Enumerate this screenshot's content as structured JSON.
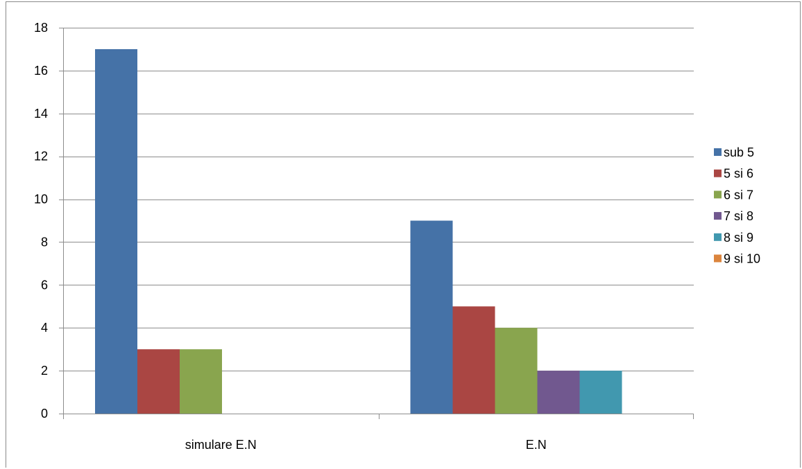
{
  "chart_data": {
    "type": "bar",
    "categories": [
      "simulare E.N",
      "E.N"
    ],
    "series": [
      {
        "name": "sub 5",
        "color": "#4572A7",
        "values": [
          17,
          9
        ]
      },
      {
        "name": "5 si 6",
        "color": "#AA4643",
        "values": [
          3,
          5
        ]
      },
      {
        "name": "6 si 7",
        "color": "#89A54E",
        "values": [
          3,
          4
        ]
      },
      {
        "name": "7 si 8",
        "color": "#71588F",
        "values": [
          0,
          2
        ]
      },
      {
        "name": "8 si 9",
        "color": "#4198AF",
        "values": [
          0,
          2
        ]
      },
      {
        "name": "9 si 10",
        "color": "#DB843D",
        "values": [
          0,
          0
        ]
      }
    ],
    "ylim": [
      0,
      18
    ],
    "yticks": [
      0,
      2,
      4,
      6,
      8,
      10,
      12,
      14,
      16,
      18
    ],
    "grid": true,
    "legend_position": "right",
    "title": "",
    "xlabel": "",
    "ylabel": ""
  }
}
